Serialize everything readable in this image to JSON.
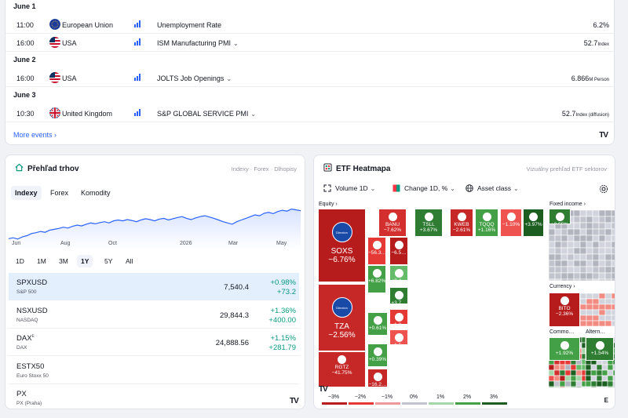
{
  "events": {
    "days": [
      {
        "label": "June 1",
        "rows": [
          {
            "time": "11:00",
            "country": "European Union",
            "flag": "eu",
            "name": "Unemployment Rate",
            "has_chevron": false,
            "value": "6.2%",
            "unit": ""
          },
          {
            "time": "16:00",
            "country": "USA",
            "flag": "us",
            "name": "ISM Manufacturing PMI",
            "has_chevron": true,
            "value": "52.7",
            "unit": "Index"
          }
        ]
      },
      {
        "label": "June 2",
        "rows": [
          {
            "time": "16:00",
            "country": "USA",
            "flag": "us",
            "name": "JOLTS Job Openings",
            "has_chevron": true,
            "value": "6.866",
            "unit": "M Person"
          }
        ]
      },
      {
        "label": "June 3",
        "rows": [
          {
            "time": "10:30",
            "country": "United Kingdom",
            "flag": "uk",
            "name": "S&P GLOBAL SERVICE PMI",
            "has_chevron": true,
            "value": "52.7",
            "unit": "Index (diffusion)"
          }
        ]
      }
    ],
    "more_label": "More events",
    "logo": "TV"
  },
  "market": {
    "title": "Přehľad trhov",
    "subtitle": "Indexy · Forex · Dlhopisy",
    "tabs": [
      "Indexy",
      "Forex",
      "Komodity"
    ],
    "active_tab": 0,
    "months": [
      "Jun",
      "Aug",
      "Oct",
      "2026",
      "Mar",
      "May"
    ],
    "ranges": [
      "1D",
      "1M",
      "3M",
      "1Y",
      "5Y",
      "All"
    ],
    "active_range": 3,
    "line_color": "#2962ff",
    "chart_series": [
      0.18,
      0.2,
      0.17,
      0.22,
      0.25,
      0.3,
      0.32,
      0.35,
      0.33,
      0.38,
      0.4,
      0.42,
      0.45,
      0.43,
      0.47,
      0.5,
      0.48,
      0.52,
      0.55,
      0.53,
      0.56,
      0.58,
      0.55,
      0.6,
      0.62,
      0.6,
      0.63,
      0.61,
      0.58,
      0.62,
      0.65,
      0.63,
      0.6,
      0.64,
      0.66,
      0.62,
      0.65,
      0.68,
      0.7,
      0.66,
      0.63,
      0.67,
      0.7,
      0.72,
      0.69,
      0.66,
      0.62,
      0.58,
      0.55,
      0.52,
      0.58,
      0.62,
      0.66,
      0.7,
      0.74,
      0.72,
      0.78,
      0.8,
      0.77,
      0.82,
      0.85,
      0.83,
      0.88,
      0.86,
      0.84
    ],
    "quotes": [
      {
        "symbol": "SPXUSD",
        "sup": "",
        "desc": "S&P 500",
        "last": "7,540.4",
        "chp": "+0.98%",
        "ch": "+73.2",
        "selected": true
      },
      {
        "symbol": "NSXUSD",
        "sup": "",
        "desc": "NASDAQ",
        "last": "29,844.3",
        "chp": "+1.36%",
        "ch": "+400.00",
        "selected": false
      },
      {
        "symbol": "DAX",
        "sup": "E ·",
        "desc": "DAX",
        "last": "24,888.56",
        "chp": "+1.15%",
        "ch": "+281.79",
        "selected": false
      },
      {
        "symbol": "ESTX50",
        "sup": "",
        "desc": "Euro Stoxx 50",
        "last": "",
        "chp": "",
        "ch": "",
        "selected": false
      },
      {
        "symbol": "PX",
        "sup": "",
        "desc": "PX (Praha)",
        "last": "",
        "chp": "",
        "ch": "",
        "selected": false
      }
    ]
  },
  "heatmap": {
    "title": "ETF Heatmapa",
    "subtitle": "Vizuálny prehľad ETF sektorov",
    "controls": {
      "volume": "Volume 1D",
      "change": "Change 1D, %",
      "asset": "Asset class"
    },
    "sectors": {
      "equity": "Equity",
      "fixed": "Fixed income",
      "currency": "Currency",
      "commo": "Commo…",
      "altern": "Altern…"
    },
    "tiles": [
      {
        "sym": "SOXS",
        "pct": "−6.76%",
        "logo": "Direxion"
      },
      {
        "sym": "TZA",
        "pct": "−2.56%",
        "logo": "Direxion"
      },
      {
        "sym": "RGTZ",
        "pct": "−41.75%"
      },
      {
        "sym": "BANU",
        "pct": "−7.62%"
      },
      {
        "sym": "TSLL",
        "pct": "+3.67%"
      },
      {
        "sym": "KWEB",
        "pct": "−2.61%"
      },
      {
        "sym": "TQQQ",
        "pct": "+1.16%"
      },
      {
        "sym": "",
        "pct": "−1.10%"
      },
      {
        "sym": "",
        "pct": "+3.97%"
      },
      {
        "sym": "",
        "pct": "−56.3…"
      },
      {
        "sym": "",
        "pct": "−6.5…"
      },
      {
        "sym": "",
        "pct": "+6.82%"
      },
      {
        "sym": "",
        "pct": "+0.4…"
      },
      {
        "sym": "",
        "pct": "+3.7…"
      },
      {
        "sym": "",
        "pct": "−1.0…"
      },
      {
        "sym": "",
        "pct": "+0.61%"
      },
      {
        "sym": "",
        "pct": "−1.5…"
      },
      {
        "sym": "",
        "pct": "+0.39%"
      },
      {
        "sym": "",
        "pct": "−16.2…"
      },
      {
        "sym": "",
        "pct": "+0.55%"
      },
      {
        "sym": "BITO",
        "pct": "−2.36%"
      },
      {
        "sym": "",
        "pct": "+1.92%"
      },
      {
        "sym": "",
        "pct": "+1.54%"
      }
    ],
    "legend": [
      "−3%",
      "−2%",
      "−1%",
      "0%",
      "1%",
      "2%",
      "3%"
    ],
    "legend_colors": [
      "#b71c1c",
      "#e53935",
      "#ef9a9a",
      "#c1c4cd",
      "#a5d6a7",
      "#43a047",
      "#1b5e20"
    ],
    "logo": "TV",
    "e_badge": "E"
  }
}
